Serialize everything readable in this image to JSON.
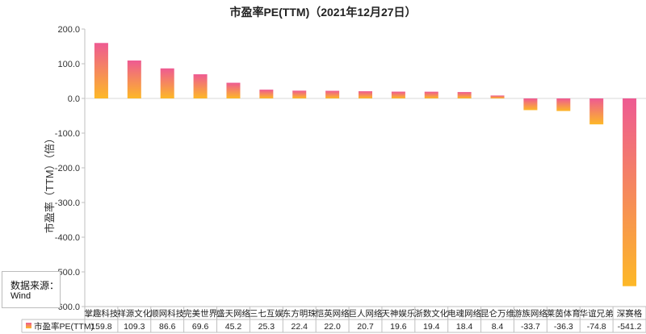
{
  "chart_data": {
    "type": "bar",
    "title": "市盈率PE(TTM)（2021年12月27日）",
    "ylabel": "市盈率（TTM）（倍）",
    "ylim": [
      -600,
      200
    ],
    "yticks": [
      "200.0",
      "100.0",
      "0.0",
      "-100.0",
      "-200.0",
      "-300.0",
      "-400.0",
      "-500.0",
      "-600.0"
    ],
    "grid": false,
    "legend": "table-row-bottom",
    "categories": [
      "掌趣科技",
      "祥源文化",
      "顺网科技",
      "完美世界",
      "盛天网络",
      "三七互娱",
      "东方明珠",
      "恺英网络",
      "巨人网络",
      "天神娱乐",
      "浙数文化",
      "电魂网络",
      "昆仑万维",
      "游族网络",
      "莱茵体育",
      "华谊兄弟",
      "深赛格"
    ],
    "series": [
      {
        "name": "市盈率PE(TTM)",
        "values": [
          159.8,
          109.3,
          86.6,
          69.6,
          45.2,
          25.3,
          22.4,
          22.0,
          20.7,
          19.6,
          19.4,
          18.4,
          8.4,
          -33.7,
          -36.3,
          -74.8,
          -541.2
        ],
        "value_labels": [
          "159.8",
          "109.3",
          "86.6",
          "69.6",
          "45.2",
          "25.3",
          "22.4",
          "22.0",
          "20.7",
          "19.6",
          "19.4",
          "18.4",
          "8.4",
          "-33.7",
          "-36.3",
          "-74.8",
          "-541.2"
        ]
      }
    ],
    "colors": {
      "gradient_pink": "#ee5a92",
      "gradient_orange": "#fdb827",
      "axis": "#bfbfbf",
      "text": "#222222"
    }
  },
  "source": {
    "title": "数据来源：",
    "value": "Wind"
  }
}
